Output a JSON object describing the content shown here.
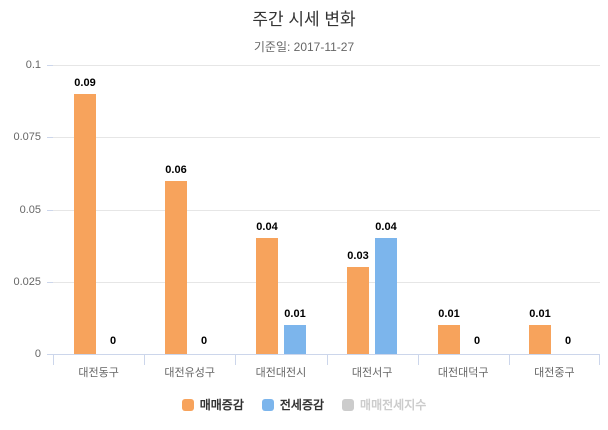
{
  "chart_data": {
    "type": "bar",
    "title": "주간 시세 변화",
    "subtitle": "기준일: 2017-11-27",
    "categories": [
      "대전동구",
      "대전유성구",
      "대전대전시",
      "대전서구",
      "대전대덕구",
      "대전중구"
    ],
    "series": [
      {
        "key": "sale-change",
        "name": "매매증감",
        "color": "#f7a35c",
        "visible": true,
        "values": [
          0.09,
          0.06,
          0.04,
          0.03,
          0.01,
          0.01
        ],
        "labels": [
          "0.09",
          "0.06",
          "0.04",
          "0.03",
          "0.01",
          "0.01"
        ]
      },
      {
        "key": "jeonse-change",
        "name": "전세증감",
        "color": "#7cb5ec",
        "visible": true,
        "values": [
          0,
          0,
          0.01,
          0.04,
          0,
          0
        ],
        "labels": [
          "0",
          "0",
          "0.01",
          "0.04",
          "0",
          "0"
        ]
      },
      {
        "key": "sale-jeonse-index",
        "name": "매매전세지수",
        "color": "#cccccc",
        "visible": false
      }
    ],
    "ylim": [
      0,
      0.1
    ],
    "yticks": [
      {
        "value": 0,
        "label": "0"
      },
      {
        "value": 0.025,
        "label": "0.025"
      },
      {
        "value": 0.05,
        "label": "0.05"
      },
      {
        "value": 0.075,
        "label": "0.075"
      },
      {
        "value": 0.1,
        "label": "0.1"
      }
    ],
    "grid": true,
    "legend_position": "bottom",
    "data_labels": true,
    "colors": {
      "grid": "#e6e6e6",
      "axis": "#ccd6eb",
      "tick": "#ccd6eb",
      "axis_label": "#666666",
      "data_label": "#000000",
      "title": "#333333",
      "subtitle": "#666666",
      "legend_text": "#333333",
      "legend_disabled": "#cccccc",
      "background": "#ffffff"
    }
  }
}
